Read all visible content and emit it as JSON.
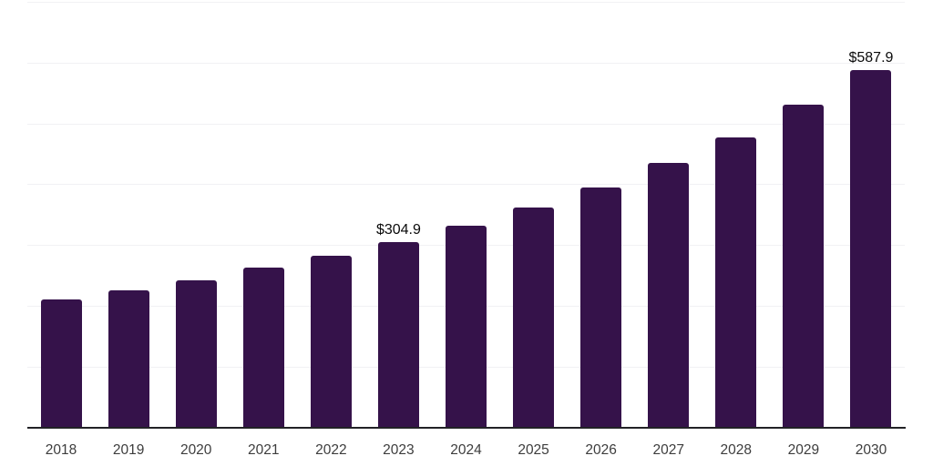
{
  "chart_data": {
    "type": "bar",
    "categories": [
      "2018",
      "2019",
      "2020",
      "2021",
      "2022",
      "2023",
      "2024",
      "2025",
      "2026",
      "2027",
      "2028",
      "2029",
      "2030"
    ],
    "values": [
      211,
      226,
      243,
      264,
      283,
      304.9,
      333,
      363,
      396,
      436,
      477,
      531,
      587.9
    ],
    "data_labels": {
      "2023": "$304.9",
      "2030": "$587.9"
    },
    "bar_color": "#35124A",
    "gridline_color": "#f1f1f4",
    "axis_line_color": "#222226",
    "tick_label_color": "#3d3d3d",
    "data_label_color": "#0a0a0a",
    "ylim": [
      0,
      700
    ],
    "grid_step": 100,
    "grid": "horizontal",
    "legend": "none",
    "y_axis_labels": "none"
  }
}
